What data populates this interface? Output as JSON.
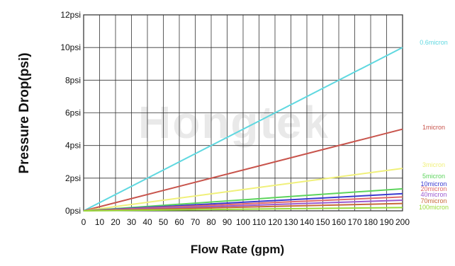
{
  "chart_data": {
    "type": "line",
    "xlabel": "Flow Rate (gpm)",
    "ylabel": "Pressure Drop(psi)",
    "xlim": [
      0,
      200
    ],
    "ylim": [
      0,
      12
    ],
    "xticks": [
      "0",
      "10",
      "20",
      "30",
      "40",
      "50",
      "60",
      "70",
      "80",
      "90",
      "100",
      "110",
      "120",
      "130",
      "140",
      "150",
      "160",
      "170",
      "180",
      "190",
      "200"
    ],
    "yticks": [
      "0psi",
      "2psi",
      "4psi",
      "6psi",
      "8psi",
      "10psi",
      "12psi"
    ],
    "xtick_values": [
      0,
      10,
      20,
      30,
      40,
      50,
      60,
      70,
      80,
      90,
      100,
      110,
      120,
      130,
      140,
      150,
      160,
      170,
      180,
      190,
      200
    ],
    "ytick_values": [
      0,
      2,
      4,
      6,
      8,
      10,
      12
    ],
    "grid": true,
    "watermark": "Hongtek",
    "series": [
      {
        "name": "0.6micron",
        "color": "#5fd8e0",
        "x": [
          0,
          200
        ],
        "y": [
          0,
          10.0
        ]
      },
      {
        "name": "1micron",
        "color": "#c8544c",
        "x": [
          0,
          200
        ],
        "y": [
          0,
          5.0
        ]
      },
      {
        "name": "3micron",
        "color": "#f0f07a",
        "x": [
          0,
          200
        ],
        "y": [
          0,
          2.6
        ]
      },
      {
        "name": "5micron",
        "color": "#5cd45c",
        "x": [
          0,
          200
        ],
        "y": [
          0,
          1.35
        ]
      },
      {
        "name": "10micron",
        "color": "#3a3ad0",
        "x": [
          0,
          200
        ],
        "y": [
          0,
          1.05
        ]
      },
      {
        "name": "20micron",
        "color": "#e06a6a",
        "x": [
          0,
          200
        ],
        "y": [
          0,
          0.85
        ]
      },
      {
        "name": "40micron",
        "color": "#9a5ad0",
        "x": [
          0,
          200
        ],
        "y": [
          0,
          0.65
        ]
      },
      {
        "name": "70micron",
        "color": "#c86a3a",
        "x": [
          0,
          200
        ],
        "y": [
          0,
          0.45
        ]
      },
      {
        "name": "100micron",
        "color": "#9adc3a",
        "x": [
          0,
          200
        ],
        "y": [
          0,
          0.2
        ]
      }
    ]
  }
}
